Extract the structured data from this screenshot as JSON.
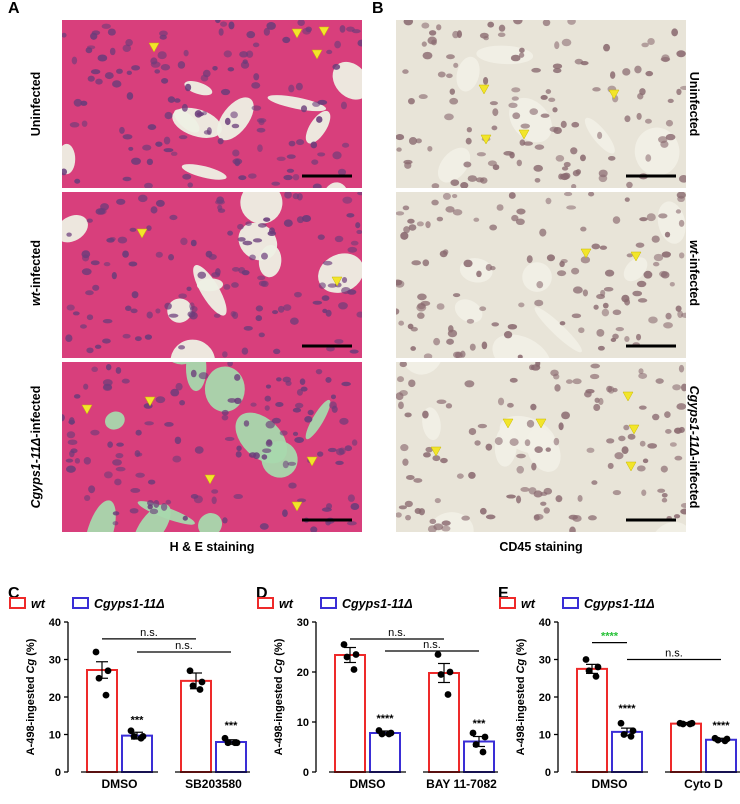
{
  "panel_labels": {
    "a": "A",
    "b": "B",
    "c": "C",
    "d": "D",
    "e": "E"
  },
  "he": {
    "rows": [
      "Uninfected",
      "wt-infected",
      "Cgyps1-11Δ-infected"
    ],
    "caption": "H & E staining",
    "colors": {
      "base": "#d83f7c",
      "nucleus": "#6a3c7a",
      "lumen": "#eef0e4",
      "lumen_c": "#a8d8ad"
    }
  },
  "cd45": {
    "rows": [
      "Uninfected",
      "wt-infected",
      "Cgyps1-11Δ-infected"
    ],
    "caption": "CD45 staining",
    "colors": {
      "base": "#e8e4d8",
      "nucleus": "#8a6a70",
      "lumen": "#f1efe6"
    }
  },
  "arrow_color": "#f2e52a",
  "chart_data": [
    {
      "type": "bar",
      "panel": "C",
      "legend": [
        "wt",
        "Cgyps1-11Δ"
      ],
      "ylabel_prefix": "A-498-ingested ",
      "ylabel_italic": "Cg",
      "ylabel_suffix": " (%)",
      "ylim": [
        0,
        40
      ],
      "yticks": [
        0,
        10,
        20,
        30,
        40
      ],
      "categories": [
        "DMSO",
        "SB203580"
      ],
      "series": [
        {
          "name": "wt",
          "color": "#ee2a2a",
          "values": [
            27.2,
            24.3
          ],
          "err": [
            2.2,
            2.1
          ],
          "points": [
            [
              32,
              27,
              25,
              20.5
            ],
            [
              27,
              24,
              23,
              22
            ]
          ]
        },
        {
          "name": "Cgyps1-11Δ",
          "color": "#3a2ed6",
          "values": [
            9.7,
            8.0
          ],
          "err": [
            0.9,
            0.6
          ],
          "points": [
            [
              11,
              9.5,
              9.5,
              9
            ],
            [
              9,
              7.8,
              7.8,
              7.8
            ]
          ]
        }
      ],
      "annotations": [
        {
          "text": "***",
          "series": 1,
          "cat": 0,
          "y": 13
        },
        {
          "text": "***",
          "series": 1,
          "cat": 1,
          "y": 11.5
        }
      ],
      "brackets": [
        {
          "text": "n.s.",
          "from": [
            0,
            0
          ],
          "to": [
            1,
            0
          ],
          "y": 35.5
        },
        {
          "text": "n.s.",
          "from": [
            0,
            1
          ],
          "to": [
            1,
            1
          ],
          "y": 32
        }
      ]
    },
    {
      "type": "bar",
      "panel": "D",
      "legend": [
        "wt",
        "Cgyps1-11Δ"
      ],
      "ylabel_prefix": "A-498-ingested ",
      "ylabel_italic": "Cg",
      "ylabel_suffix": " (%)",
      "ylim": [
        0,
        30
      ],
      "yticks": [
        0,
        10,
        20,
        30
      ],
      "categories": [
        "DMSO",
        "BAY 11-7082"
      ],
      "series": [
        {
          "name": "wt",
          "color": "#ee2a2a",
          "values": [
            23.4,
            19.8
          ],
          "err": [
            1.5,
            1.9
          ],
          "points": [
            [
              25.5,
              23.5,
              23,
              20.5
            ],
            [
              23.5,
              20,
              19.5,
              15.5
            ]
          ]
        },
        {
          "name": "Cgyps1-11Δ",
          "color": "#3a2ed6",
          "values": [
            7.8,
            6.1
          ],
          "err": [
            0.4,
            1.0
          ],
          "points": [
            [
              8.3,
              7.8,
              7.6,
              7.6
            ],
            [
              7.8,
              7,
              5.5,
              4
            ]
          ]
        }
      ],
      "annotations": [
        {
          "text": "****",
          "series": 1,
          "cat": 0,
          "y": 10
        },
        {
          "text": "***",
          "series": 1,
          "cat": 1,
          "y": 9
        }
      ],
      "brackets": [
        {
          "text": "n.s.",
          "from": [
            0,
            0
          ],
          "to": [
            1,
            0
          ],
          "y": 26.6
        },
        {
          "text": "n.s.",
          "from": [
            0,
            1
          ],
          "to": [
            1,
            1
          ],
          "y": 24.2
        }
      ]
    },
    {
      "type": "bar",
      "panel": "E",
      "legend": [
        "wt",
        "Cgyps1-11Δ"
      ],
      "ylabel_prefix": "A-498-ingested ",
      "ylabel_italic": "Cg",
      "ylabel_suffix": " (%)",
      "ylim": [
        0,
        40
      ],
      "yticks": [
        0,
        10,
        20,
        30,
        40
      ],
      "categories": [
        "DMSO",
        "Cyto D"
      ],
      "series": [
        {
          "name": "wt",
          "color": "#ee2a2a",
          "values": [
            27.5,
            12.9
          ],
          "err": [
            1.2,
            0.3
          ],
          "points": [
            [
              30,
              28,
              27,
              25.5
            ],
            [
              13,
              13,
              12.8,
              12.8
            ]
          ]
        },
        {
          "name": "Cgyps1-11Δ",
          "color": "#3a2ed6",
          "values": [
            10.7,
            8.6
          ],
          "err": [
            1.0,
            0.4
          ],
          "points": [
            [
              13,
              11,
              10,
              9.5
            ],
            [
              9,
              8.8,
              8.5,
              8.3
            ]
          ]
        }
      ],
      "annotations": [
        {
          "text": "****",
          "series": 1,
          "cat": 0,
          "y": 16
        },
        {
          "text": "****",
          "series": 1,
          "cat": 1,
          "y": 11.5
        }
      ],
      "brackets": [
        {
          "text": "****",
          "from": [
            0,
            0
          ],
          "to": [
            0,
            1
          ],
          "y": 34.5,
          "color": "#29c23a"
        },
        {
          "text": "n.s.",
          "from": [
            0,
            1
          ],
          "to": [
            1,
            1
          ],
          "y": 30
        }
      ]
    }
  ]
}
